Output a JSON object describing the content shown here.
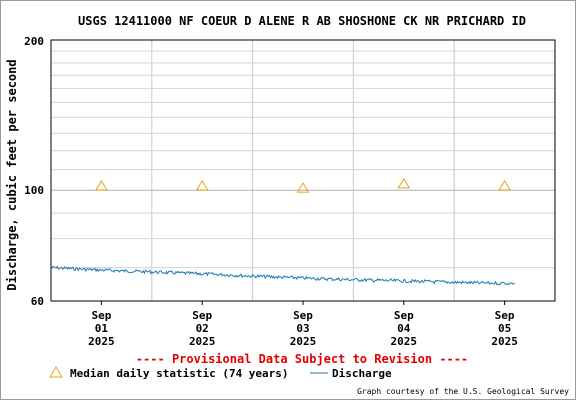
{
  "chart_data": {
    "type": "line",
    "title": "USGS 12411000 NF COEUR D ALENE R AB SHOSHONE CK NR PRICHARD ID",
    "ylabel": "Discharge, cubic feet per second",
    "xlabel": "",
    "y_scale": "log",
    "ylim": [
      60,
      200
    ],
    "y_ticks": [
      "200",
      "100",
      "60"
    ],
    "x_tick_labels": [
      [
        "Sep",
        "01",
        "2025"
      ],
      [
        "Sep",
        "02",
        "2025"
      ],
      [
        "Sep",
        "03",
        "2025"
      ],
      [
        "Sep",
        "04",
        "2025"
      ],
      [
        "Sep",
        "05",
        "2025"
      ]
    ],
    "x_days": [
      0,
      1,
      2,
      3,
      4,
      5
    ],
    "grid": true,
    "series": [
      {
        "name": "Discharge",
        "color": "#1f78b4",
        "x_days": [
          0,
          0.25,
          0.5,
          0.75,
          1,
          1.25,
          1.5,
          1.75,
          2,
          2.25,
          2.5,
          2.75,
          3,
          3.25,
          3.5,
          3.75,
          4,
          4.25,
          4.6
        ],
        "values": [
          70.0,
          69.6,
          69.2,
          68.9,
          68.6,
          68.3,
          68.0,
          67.7,
          67.3,
          67.0,
          66.7,
          66.4,
          66.2,
          66.0,
          65.8,
          65.6,
          65.4,
          65.2,
          65.1
        ]
      },
      {
        "name": "Median daily statistic (74 years)",
        "marker": "triangle",
        "color": "#e8a317",
        "x_days": [
          0.5,
          1.5,
          2.5,
          3.5,
          4.5
        ],
        "values": [
          102,
          102,
          101,
          103,
          102
        ]
      }
    ],
    "notice": "---- Provisional Data Subject to Revision ----",
    "legend": {
      "median_label": "Median daily statistic (74 years)",
      "discharge_label": "Discharge"
    },
    "credit": "Graph courtesy of the U.S. Geological Survey"
  }
}
